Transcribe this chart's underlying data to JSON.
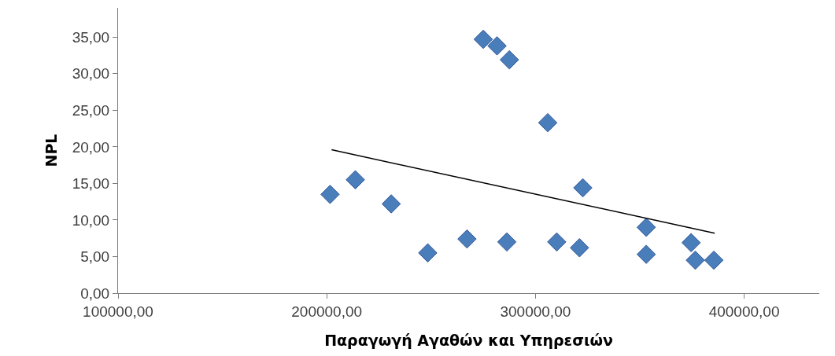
{
  "chart_data": {
    "type": "scatter",
    "xlabel": "Παραγωγή Αγαθών και Υπηρεσιών",
    "ylabel": "NPL",
    "marker": "diamond",
    "grid": false,
    "xlim": [
      100000,
      436000
    ],
    "xticks": [
      {
        "value": 100000,
        "label": "100000,00"
      },
      {
        "value": 200000,
        "label": "200000,00"
      },
      {
        "value": 300000,
        "label": "300000,00"
      },
      {
        "value": 400000,
        "label": "400000,00"
      }
    ],
    "ylim": [
      0,
      39
    ],
    "yticks": [
      {
        "value": 0,
        "label": "0,00"
      },
      {
        "value": 5,
        "label": "5,00"
      },
      {
        "value": 10,
        "label": "10,00"
      },
      {
        "value": 15,
        "label": "15,00"
      },
      {
        "value": 20,
        "label": "20,00"
      },
      {
        "value": 25,
        "label": "25,00"
      },
      {
        "value": 30,
        "label": "30,00"
      },
      {
        "value": 35,
        "label": "35,00"
      }
    ],
    "series": [
      {
        "color": "#4a7ebb",
        "x": [
          201600,
          213700,
          230900,
          248400,
          267200,
          275000,
          281600,
          287500,
          286300,
          305900,
          310200,
          321100,
          322700,
          353100,
          353100,
          374600,
          376600,
          385500
        ],
        "values": [
          13.5,
          15.5,
          12.2,
          5.5,
          7.4,
          34.7,
          33.8,
          31.9,
          7.0,
          23.3,
          7.0,
          6.2,
          14.4,
          9.0,
          5.3,
          6.9,
          4.5,
          4.5
        ]
      },
      {
        "type": "line",
        "color": "#000000",
        "marker": "none",
        "line_style": "solid",
        "x": [
          202300,
          385900
        ],
        "values": [
          19.6,
          8.2
        ]
      }
    ]
  }
}
